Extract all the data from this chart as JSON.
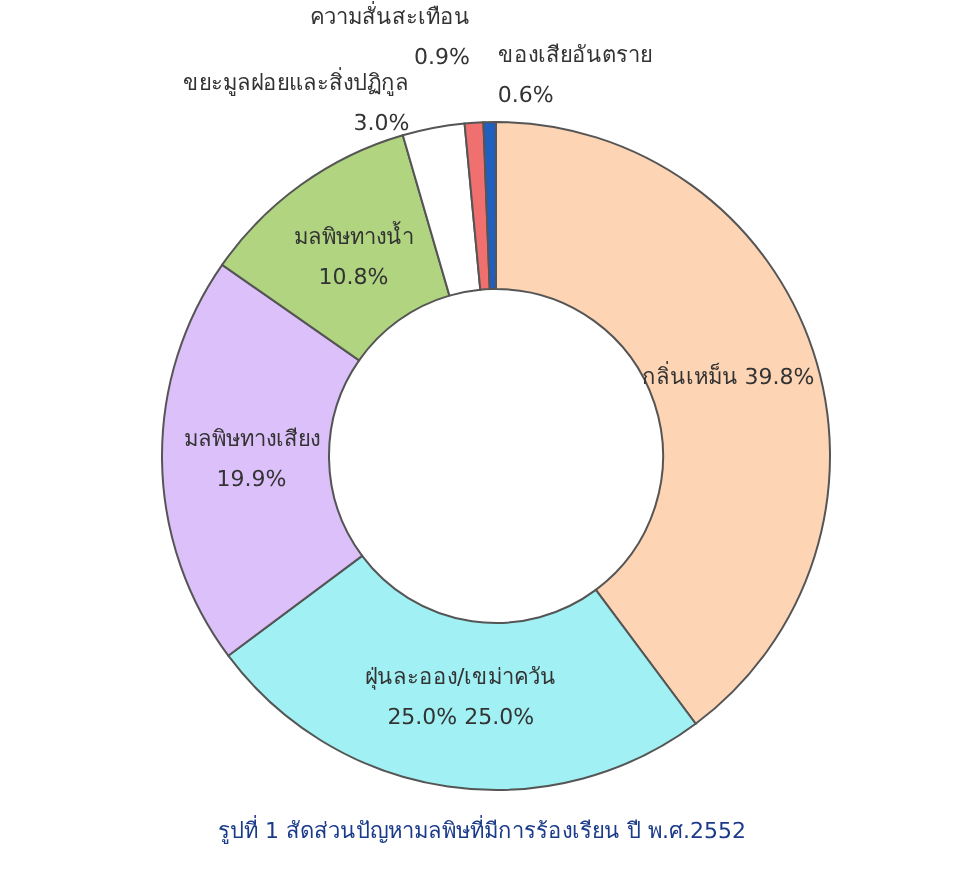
{
  "chart_data": {
    "type": "donut",
    "categories": [
      "กลิ่นเหม็น",
      "ฝุ่นละออง/เขม่าควัน",
      "มลพิษทางเสียง",
      "มลพิษทางน้ำ",
      "ขยะมูลฝอยและสิ่งปฏิกูล",
      "ความสั่นสะเทือน",
      "ของเสียอันตราย"
    ],
    "values": [
      39.8,
      25.0,
      19.9,
      10.8,
      3.0,
      0.9,
      0.6
    ],
    "colors": [
      "#fdd5b5",
      "#a0f0f4",
      "#dcc0fa",
      "#b0d480",
      "#ffffff",
      "#f07070",
      "#1f5fc0"
    ],
    "value_labels": [
      "39.8%",
      "25.0%   25.0%",
      "19.9%",
      "10.8%",
      "3.0%",
      "0.9%",
      "0.6%"
    ],
    "annotations": [
      "รูปที่ 1 สัดส่วนปัญหามลพิษที่มีการร้องเรียน ปี พ.ศ.2552"
    ]
  }
}
